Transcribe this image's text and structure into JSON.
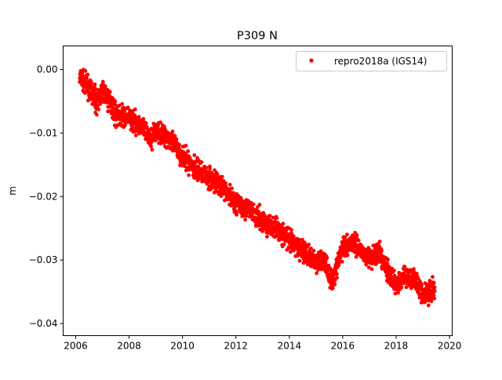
{
  "chart_data": {
    "type": "scatter",
    "title": "P309 N",
    "xlabel": "",
    "ylabel": "m",
    "xlim": [
      2005.53,
      2020.1
    ],
    "ylim": [
      -0.0419,
      0.0037
    ],
    "x_ticks": [
      2006,
      2008,
      2010,
      2012,
      2014,
      2016,
      2018,
      2020
    ],
    "x_tick_labels": [
      "2006",
      "2008",
      "2010",
      "2012",
      "2014",
      "2016",
      "2018",
      "2020"
    ],
    "y_ticks": [
      0.0,
      -0.01,
      -0.02,
      -0.03,
      -0.04
    ],
    "y_tick_labels": [
      "0.00",
      "−0.01",
      "−0.02",
      "−0.03",
      "−0.04"
    ],
    "grid": false,
    "legend": {
      "placement": "top-right",
      "entries": [
        "repro2018a (IGS14)"
      ]
    },
    "series": [
      {
        "name": "repro2018a (IGS14)",
        "color": "#ff0000",
        "marker": "dot",
        "x": [
          2006.2,
          2006.5,
          2006.8,
          2007.0,
          2007.3,
          2007.5,
          2008.0,
          2008.5,
          2008.8,
          2009.0,
          2009.5,
          2010.0,
          2010.5,
          2011.0,
          2011.5,
          2012.0,
          2012.5,
          2013.0,
          2013.5,
          2014.0,
          2014.5,
          2015.0,
          2015.3,
          2015.6,
          2016.0,
          2016.4,
          2016.8,
          2017.0,
          2017.3,
          2017.6,
          2018.0,
          2018.3,
          2018.7,
          2019.0,
          2019.4
        ],
        "y": [
          -0.0015,
          -0.003,
          -0.005,
          -0.0035,
          -0.005,
          -0.007,
          -0.0077,
          -0.009,
          -0.011,
          -0.0095,
          -0.0107,
          -0.0138,
          -0.0157,
          -0.017,
          -0.0185,
          -0.021,
          -0.022,
          -0.024,
          -0.025,
          -0.027,
          -0.0285,
          -0.0305,
          -0.0298,
          -0.0335,
          -0.028,
          -0.027,
          -0.029,
          -0.0298,
          -0.0287,
          -0.031,
          -0.034,
          -0.0323,
          -0.033,
          -0.0355,
          -0.0348
        ]
      }
    ]
  }
}
